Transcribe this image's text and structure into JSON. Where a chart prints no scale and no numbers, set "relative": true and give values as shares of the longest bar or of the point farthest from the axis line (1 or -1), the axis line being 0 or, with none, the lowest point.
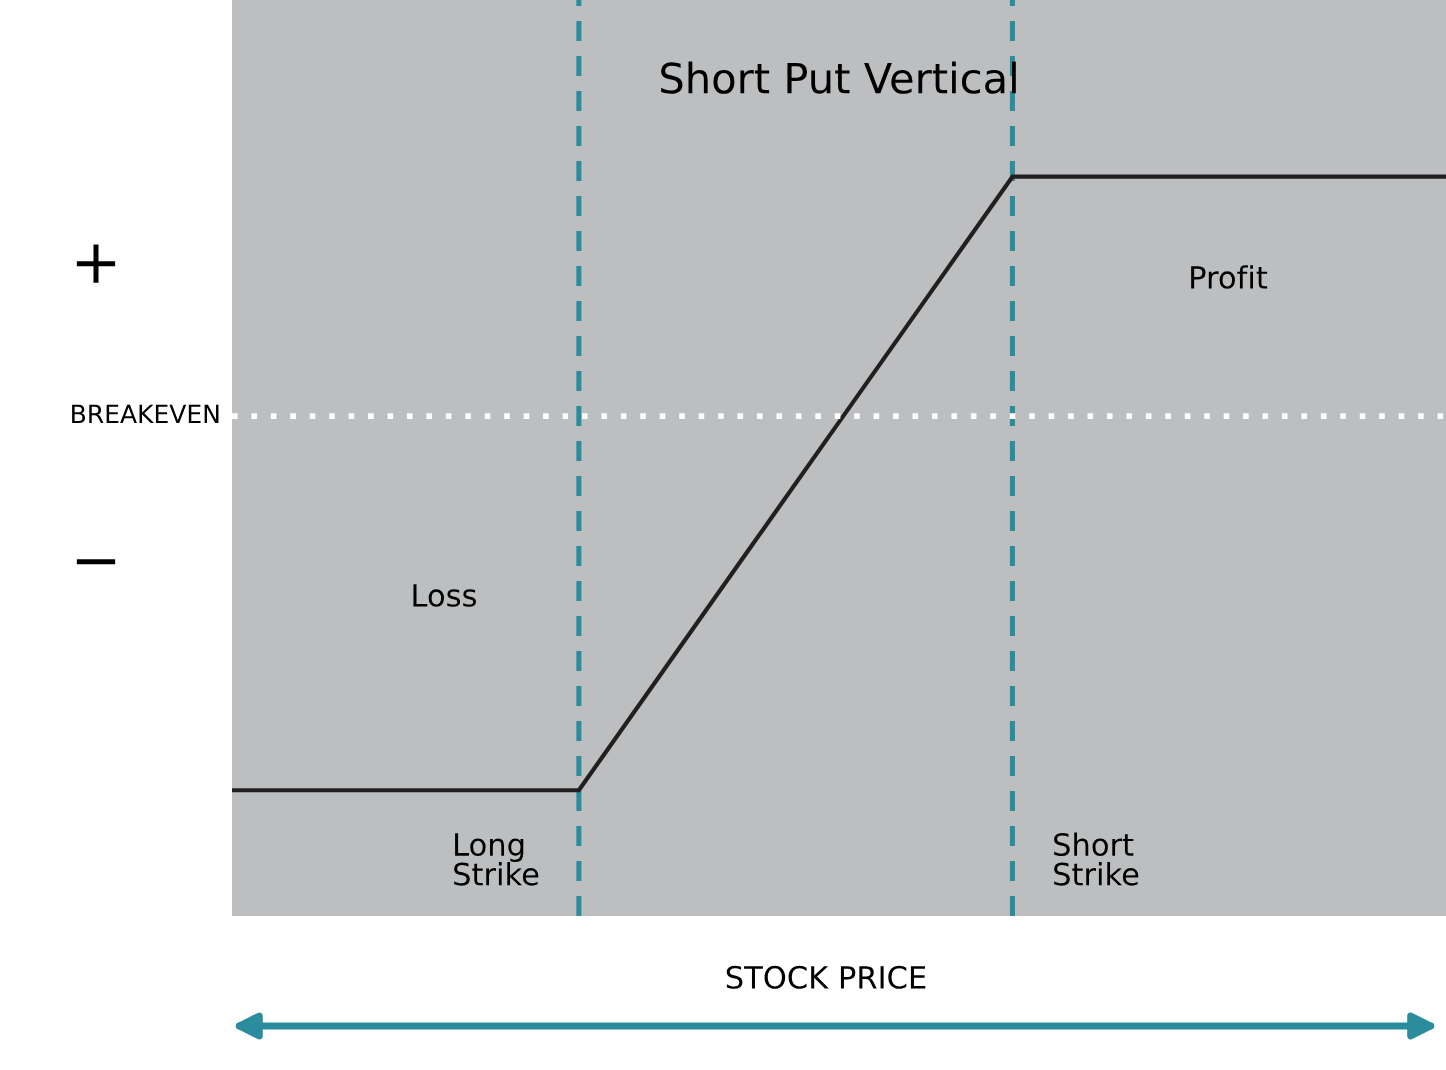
{
  "chart_data": {
    "type": "line",
    "title": "Short Put Vertical",
    "relative": true,
    "categories": [
      null,
      null,
      null,
      null,
      null,
      null,
      null,
      null,
      null,
      null,
      null,
      null,
      null,
      null,
      null
    ],
    "series": [
      {
        "color": "#231f20",
        "values": [
          -1,
          -1,
          -1,
          -1,
          -1,
          -0.672,
          -0.344,
          -0.016,
          0.312,
          0.64,
          0.64,
          0.64,
          0.64,
          0.64,
          0.64
        ]
      }
    ],
    "line_style": "solid",
    "ref_lines": [
      {
        "axis": "y",
        "value": 0,
        "label": "BREAKEVEN",
        "color": "#ffffff",
        "line_style": "dotted"
      }
    ],
    "annotations": [
      "+",
      "−",
      "Loss",
      "Profit",
      "STOCK PRICE",
      "Long\nStrike",
      "Short\nStrike"
    ]
  }
}
